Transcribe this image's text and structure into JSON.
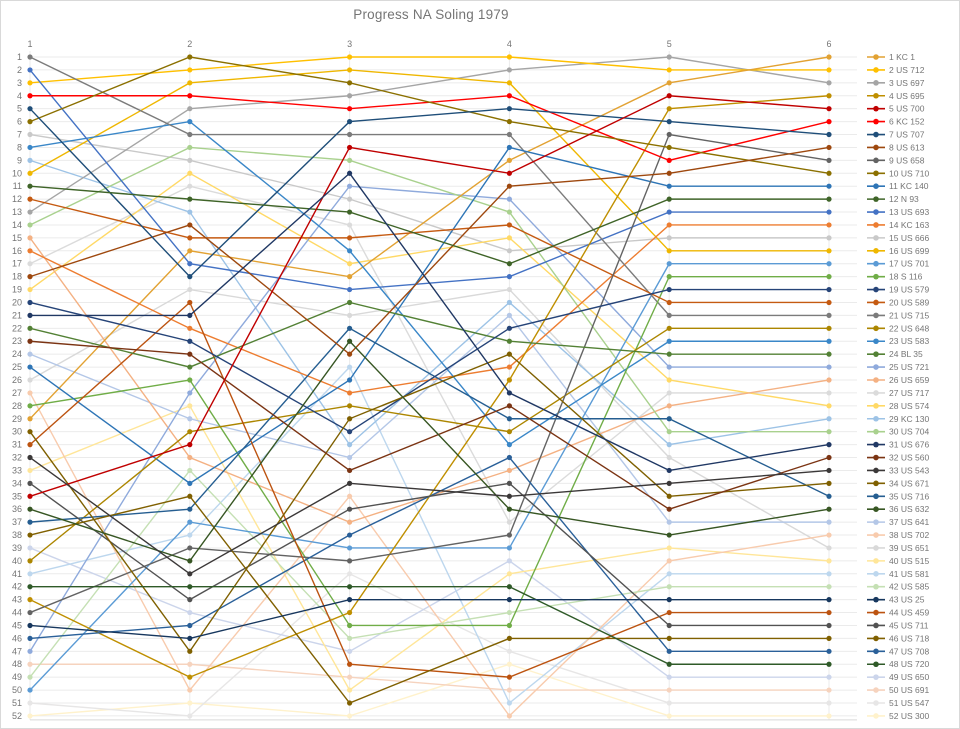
{
  "title": "Progress NA Soling 1979",
  "chart_data": {
    "type": "line",
    "subtype": "bump-chart",
    "title": "Progress NA Soling 1979",
    "x": [
      1,
      2,
      3,
      4,
      5,
      6
    ],
    "x_axis_position": "top",
    "xlabel": "",
    "ylabel": "",
    "ylim": [
      1,
      52
    ],
    "y_ticks_every": 1,
    "y_inverted": true,
    "grid": true,
    "legend_position": "right",
    "axis_text_color": "#757575",
    "grid_color": "#ebebeb",
    "series": [
      {
        "name": "1 KC 1",
        "color": "#E2A233",
        "positions": [
          29,
          16,
          18,
          9,
          3,
          1
        ]
      },
      {
        "name": "2 US 712",
        "color": "#FFC000",
        "positions": [
          3,
          2,
          1,
          1,
          2,
          2
        ]
      },
      {
        "name": "3 US 697",
        "color": "#A5A5A5",
        "positions": [
          13,
          5,
          4,
          2,
          1,
          3
        ]
      },
      {
        "name": "4 US 695",
        "color": "#BF8F00",
        "positions": [
          43,
          49,
          44,
          26,
          5,
          4
        ]
      },
      {
        "name": "5 US 700",
        "color": "#C00000",
        "positions": [
          35,
          31,
          8,
          10,
          4,
          5
        ]
      },
      {
        "name": "6 KC 152",
        "color": "#FF0000",
        "positions": [
          4,
          4,
          5,
          4,
          9,
          6
        ]
      },
      {
        "name": "7 US 707",
        "color": "#1F4E79",
        "positions": [
          5,
          18,
          6,
          5,
          6,
          7
        ]
      },
      {
        "name": "8 US 613",
        "color": "#9E480E",
        "positions": [
          18,
          14,
          24,
          11,
          10,
          8
        ]
      },
      {
        "name": "9 US 658",
        "color": "#636363",
        "positions": [
          44,
          39,
          40,
          38,
          7,
          9
        ]
      },
      {
        "name": "10 US 710",
        "color": "#8B7000",
        "positions": [
          6,
          1,
          3,
          6,
          8,
          10
        ]
      },
      {
        "name": "11 KC 140",
        "color": "#2E75B6",
        "positions": [
          25,
          34,
          26,
          8,
          11,
          11
        ]
      },
      {
        "name": "12 N 93",
        "color": "#3F6428",
        "positions": [
          11,
          12,
          13,
          17,
          12,
          12
        ]
      },
      {
        "name": "13 US 693",
        "color": "#4472C4",
        "positions": [
          2,
          17,
          19,
          18,
          13,
          13
        ]
      },
      {
        "name": "14 KC 163",
        "color": "#ED7D31",
        "positions": [
          16,
          22,
          27,
          25,
          14,
          14
        ]
      },
      {
        "name": "15 US 666",
        "color": "#C9C9C9",
        "positions": [
          7,
          9,
          12,
          16,
          15,
          15
        ]
      },
      {
        "name": "16 US 699",
        "color": "#EFB700",
        "positions": [
          10,
          3,
          2,
          3,
          16,
          16
        ]
      },
      {
        "name": "17 US 701",
        "color": "#5B9BD5",
        "positions": [
          50,
          37,
          39,
          39,
          17,
          17
        ]
      },
      {
        "name": "18 S 116",
        "color": "#70AD47",
        "positions": [
          28,
          26,
          45,
          45,
          18,
          18
        ]
      },
      {
        "name": "19 US 579",
        "color": "#264478",
        "positions": [
          20,
          23,
          30,
          22,
          19,
          19
        ]
      },
      {
        "name": "20 US 589",
        "color": "#C55A11",
        "positions": [
          12,
          15,
          15,
          14,
          20,
          20
        ]
      },
      {
        "name": "21 US 715",
        "color": "#7B7B7B",
        "positions": [
          1,
          7,
          7,
          7,
          21,
          21
        ]
      },
      {
        "name": "22 US 648",
        "color": "#AC8600",
        "positions": [
          40,
          30,
          28,
          30,
          22,
          22
        ]
      },
      {
        "name": "23 US 583",
        "color": "#3A87C8",
        "positions": [
          8,
          6,
          16,
          31,
          23,
          23
        ]
      },
      {
        "name": "24 BL 35",
        "color": "#538135",
        "positions": [
          22,
          25,
          20,
          23,
          24,
          24
        ]
      },
      {
        "name": "25 US 721",
        "color": "#8FAADC",
        "positions": [
          47,
          27,
          11,
          12,
          25,
          25
        ]
      },
      {
        "name": "26 US 659",
        "color": "#F4B183",
        "positions": [
          15,
          32,
          37,
          33,
          28,
          26
        ]
      },
      {
        "name": "27 US 717",
        "color": "#DBDBDB",
        "positions": [
          17,
          11,
          14,
          37,
          27,
          27
        ]
      },
      {
        "name": "28 US 574",
        "color": "#FFD966",
        "positions": [
          19,
          10,
          17,
          15,
          26,
          28
        ]
      },
      {
        "name": "29 KC 130",
        "color": "#9DC3E6",
        "positions": [
          9,
          13,
          31,
          20,
          31,
          29
        ]
      },
      {
        "name": "30 US 704",
        "color": "#A9D18E",
        "positions": [
          14,
          8,
          9,
          13,
          30,
          30
        ]
      },
      {
        "name": "31 US 676",
        "color": "#203864",
        "positions": [
          21,
          21,
          10,
          27,
          33,
          31
        ]
      },
      {
        "name": "32 US 560",
        "color": "#7B3413",
        "positions": [
          23,
          24,
          33,
          28,
          36,
          32
        ]
      },
      {
        "name": "33 US 543",
        "color": "#3B3838",
        "positions": [
          32,
          41,
          34,
          35,
          34,
          33
        ]
      },
      {
        "name": "34 US 671",
        "color": "#7F6000",
        "positions": [
          30,
          47,
          29,
          24,
          35,
          34
        ]
      },
      {
        "name": "35 US 716",
        "color": "#255E91",
        "positions": [
          37,
          36,
          22,
          29,
          29,
          35
        ]
      },
      {
        "name": "36 US 632",
        "color": "#375623",
        "positions": [
          36,
          40,
          23,
          36,
          38,
          36
        ]
      },
      {
        "name": "37 US 641",
        "color": "#B4C7E7",
        "positions": [
          24,
          29,
          32,
          21,
          37,
          37
        ]
      },
      {
        "name": "38 US 702",
        "color": "#F8CBAD",
        "positions": [
          27,
          50,
          35,
          52,
          40,
          38
        ]
      },
      {
        "name": "39 US 651",
        "color": "#D9D9D9",
        "positions": [
          26,
          19,
          21,
          19,
          32,
          39
        ]
      },
      {
        "name": "40 US 515",
        "color": "#FFE699",
        "positions": [
          33,
          28,
          50,
          41,
          39,
          40
        ]
      },
      {
        "name": "41 US 581",
        "color": "#BDD7EE",
        "positions": [
          41,
          38,
          25,
          51,
          41,
          41
        ]
      },
      {
        "name": "42 US 585",
        "color": "#C5E0B4",
        "positions": [
          49,
          33,
          46,
          44,
          42,
          42
        ]
      },
      {
        "name": "43 US 25",
        "color": "#17375E",
        "positions": [
          45,
          46,
          43,
          43,
          43,
          43
        ]
      },
      {
        "name": "44 US 459",
        "color": "#BC5310",
        "positions": [
          31,
          20,
          48,
          49,
          44,
          44
        ]
      },
      {
        "name": "45 US 711",
        "color": "#525252",
        "positions": [
          34,
          43,
          36,
          34,
          45,
          45
        ]
      },
      {
        "name": "46 US 718",
        "color": "#806000",
        "positions": [
          38,
          35,
          51,
          46,
          46,
          46
        ]
      },
      {
        "name": "47 US 708",
        "color": "#2A6099",
        "positions": [
          46,
          45,
          38,
          32,
          47,
          47
        ]
      },
      {
        "name": "48 US 720",
        "color": "#2F5A28",
        "positions": [
          42,
          42,
          42,
          42,
          48,
          48
        ]
      },
      {
        "name": "49 US 650",
        "color": "#CCD5EB",
        "positions": [
          39,
          44,
          47,
          40,
          49,
          49
        ]
      },
      {
        "name": "50 US 691",
        "color": "#F6D3BE",
        "positions": [
          48,
          48,
          49,
          50,
          50,
          50
        ]
      },
      {
        "name": "51 US 547",
        "color": "#E7E6E6",
        "positions": [
          51,
          52,
          41,
          47,
          51,
          51
        ]
      },
      {
        "name": "52 US 300",
        "color": "#FFF2CC",
        "positions": [
          52,
          51,
          52,
          48,
          52,
          52
        ]
      }
    ]
  }
}
